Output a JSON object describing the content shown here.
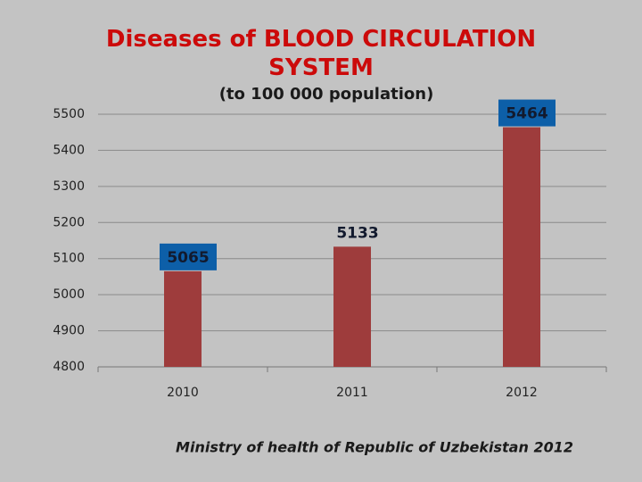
{
  "chart_data": {
    "type": "bar",
    "title": "Diseases of BLOOD CIRCULATION SYSTEM",
    "subtitle": "(to 100 000 population)",
    "categories": [
      "2010",
      "2011",
      "2012"
    ],
    "values": [
      5065,
      5133,
      5464
    ],
    "color": "#9e3c3c",
    "label_box": [
      true,
      false,
      true
    ],
    "label_box_color": "#0d5fa8",
    "ylim": [
      4800,
      5500
    ],
    "yticks": [
      4800,
      4900,
      5000,
      5100,
      5200,
      5300,
      5400,
      5500
    ],
    "grid": true,
    "source": "Ministry of health of Republic of Uzbekistan 2012"
  }
}
